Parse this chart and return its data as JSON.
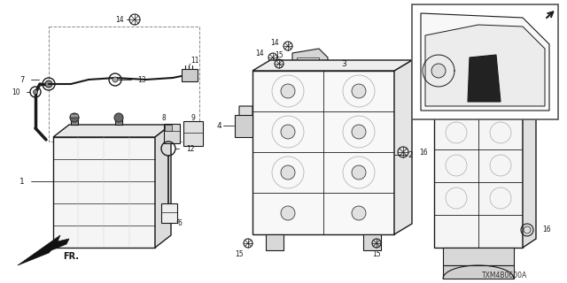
{
  "bg_color": "#ffffff",
  "line_color": "#1a1a1a",
  "diagram_code_text": "TXM4B0600A",
  "figsize": [
    6.4,
    3.2
  ],
  "dpi": 100
}
